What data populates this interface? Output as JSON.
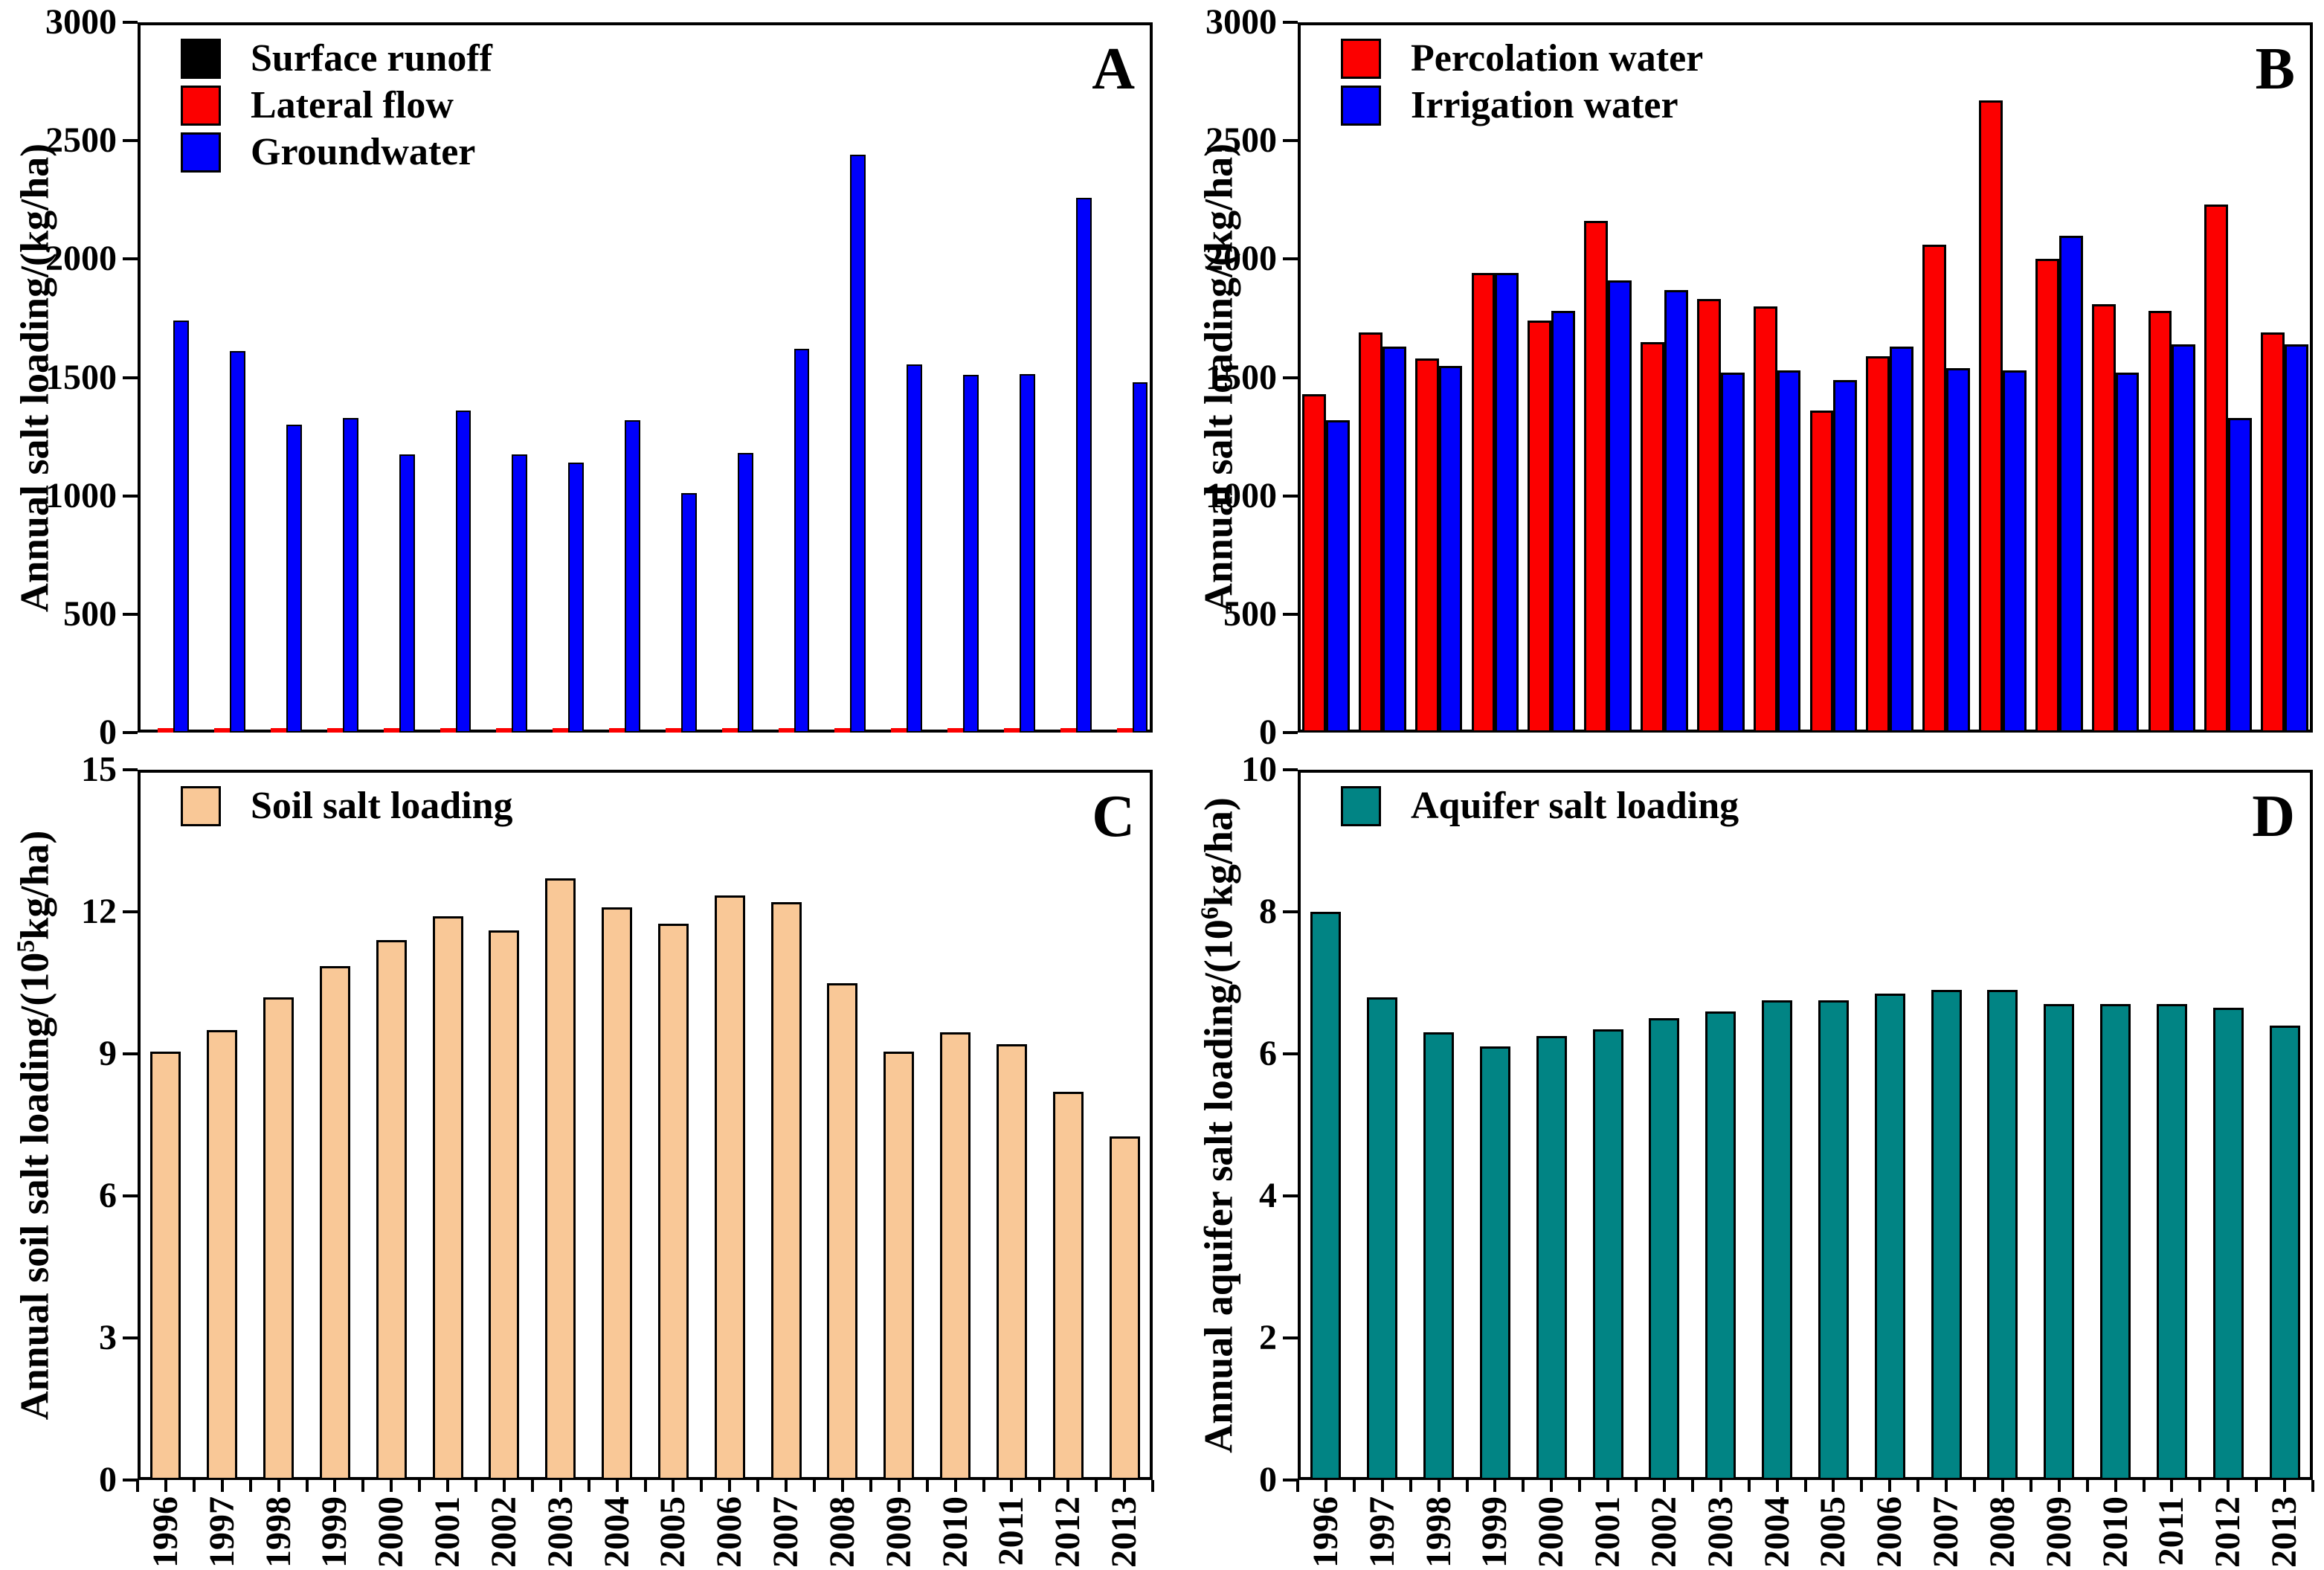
{
  "figure": {
    "background": "#ffffff",
    "font_color": "#000000"
  },
  "chart_data": [
    {
      "type": "bar",
      "panel_letter": "A",
      "title": "",
      "ylabel": {
        "prefix": "Annual salt loading/(kg/ha)",
        "sup": "",
        "suffix": ""
      },
      "ylim": [
        0,
        3000
      ],
      "yticks": [
        0,
        500,
        1000,
        1500,
        2000,
        2500,
        3000
      ],
      "grid": false,
      "legend_position": "top-left",
      "categories": [
        "1996",
        "1997",
        "1998",
        "1999",
        "2000",
        "2001",
        "2002",
        "2003",
        "2004",
        "2005",
        "2006",
        "2007",
        "2008",
        "2009",
        "2010",
        "2011",
        "2012",
        "2013"
      ],
      "series": [
        {
          "name": "Surface runoff",
          "color": "#000000",
          "values": [
            8,
            8,
            8,
            8,
            8,
            8,
            8,
            8,
            8,
            8,
            8,
            8,
            8,
            8,
            8,
            8,
            8,
            8
          ]
        },
        {
          "name": "Lateral flow",
          "color": "#fc0000",
          "values": [
            20,
            20,
            20,
            20,
            20,
            20,
            20,
            20,
            20,
            20,
            20,
            20,
            20,
            20,
            20,
            20,
            20,
            20
          ]
        },
        {
          "name": "Groundwater",
          "color": "#0000fc",
          "values": [
            1740,
            1610,
            1300,
            1330,
            1175,
            1360,
            1175,
            1140,
            1320,
            1010,
            1180,
            1620,
            2440,
            1555,
            1510,
            1515,
            2260,
            1480
          ]
        }
      ]
    },
    {
      "type": "bar",
      "panel_letter": "B",
      "title": "",
      "ylabel": {
        "prefix": "Annual salt loading/(kg/ha)",
        "sup": "",
        "suffix": ""
      },
      "ylim": [
        0,
        3000
      ],
      "yticks": [
        0,
        500,
        1000,
        1500,
        2000,
        2500,
        3000
      ],
      "grid": false,
      "legend_position": "top-left",
      "categories": [
        "1996",
        "1997",
        "1998",
        "1999",
        "2000",
        "2001",
        "2002",
        "2003",
        "2004",
        "2005",
        "2006",
        "2007",
        "2008",
        "2009",
        "2010",
        "2011",
        "2012",
        "2013"
      ],
      "series": [
        {
          "name": "Percolation water",
          "color": "#fc0000",
          "values": [
            1430,
            1690,
            1580,
            1940,
            1740,
            2160,
            1650,
            1830,
            1800,
            1360,
            1590,
            2060,
            2670,
            2000,
            1810,
            1780,
            2230,
            1690
          ]
        },
        {
          "name": "Irrigation water",
          "color": "#0000fc",
          "values": [
            1320,
            1630,
            1550,
            1940,
            1780,
            1910,
            1870,
            1520,
            1530,
            1490,
            1630,
            1540,
            1530,
            2100,
            1520,
            1640,
            1330,
            1640
          ]
        }
      ]
    },
    {
      "type": "bar",
      "panel_letter": "C",
      "title": "",
      "ylabel": {
        "prefix": "Annual soil salt loading/(10",
        "sup": "5",
        "suffix": "kg/ha)"
      },
      "ylim": [
        0,
        15
      ],
      "yticks": [
        0,
        3,
        6,
        9,
        12,
        15
      ],
      "grid": false,
      "legend_position": "top-left",
      "categories": [
        "1996",
        "1997",
        "1998",
        "1999",
        "2000",
        "2001",
        "2002",
        "2003",
        "2004",
        "2005",
        "2006",
        "2007",
        "2008",
        "2009",
        "2010",
        "2011",
        "2012",
        "2013"
      ],
      "series": [
        {
          "name": "Soil salt loading",
          "color": "#f9c897",
          "values": [
            9.05,
            9.5,
            10.2,
            10.85,
            11.4,
            11.9,
            11.6,
            12.7,
            12.1,
            11.75,
            12.35,
            12.2,
            10.5,
            9.05,
            9.45,
            9.2,
            8.2,
            7.25
          ]
        }
      ]
    },
    {
      "type": "bar",
      "panel_letter": "D",
      "title": "",
      "ylabel": {
        "prefix": "Annual aquifer salt loading/(10",
        "sup": "6",
        "suffix": "kg/ha)"
      },
      "ylim": [
        0,
        10
      ],
      "yticks": [
        0,
        2,
        4,
        6,
        8,
        10
      ],
      "grid": false,
      "legend_position": "top-left",
      "categories": [
        "1996",
        "1997",
        "1998",
        "1999",
        "2000",
        "2001",
        "2002",
        "2003",
        "2004",
        "2005",
        "2006",
        "2007",
        "2008",
        "2009",
        "2010",
        "2011",
        "2012",
        "2013"
      ],
      "series": [
        {
          "name": "Aquifer salt loading",
          "color": "#018484",
          "values": [
            8.0,
            6.8,
            6.3,
            6.1,
            6.25,
            6.35,
            6.5,
            6.6,
            6.75,
            6.75,
            6.85,
            6.9,
            6.9,
            6.7,
            6.7,
            6.7,
            6.65,
            6.4
          ]
        }
      ]
    }
  ]
}
